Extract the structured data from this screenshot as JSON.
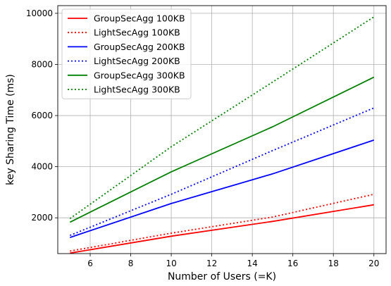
{
  "chart_data": {
    "type": "line",
    "xlabel": "Number of Users (=K)",
    "ylabel": "key Sharing Time (ms)",
    "xlim": [
      4.4,
      20.6
    ],
    "ylim": [
      600,
      10300
    ],
    "x_ticks": [
      6,
      8,
      10,
      12,
      14,
      16,
      18,
      20
    ],
    "y_ticks": [
      2000,
      4000,
      6000,
      8000,
      10000
    ],
    "grid": true,
    "legend_position": "top-left",
    "x": [
      5,
      10,
      15,
      20
    ],
    "series": [
      {
        "name": "GroupSecAgg 100KB",
        "color": "#ff0000",
        "dash": "solid",
        "values": [
          620,
          1280,
          1860,
          2510
        ]
      },
      {
        "name": "LightSecAgg 100KB",
        "color": "#ff0000",
        "dash": "dotted",
        "values": [
          700,
          1400,
          2030,
          2920
        ]
      },
      {
        "name": "GroupSecAgg 200KB",
        "color": "#0000ff",
        "dash": "solid",
        "values": [
          1230,
          2560,
          3720,
          5040
        ]
      },
      {
        "name": "LightSecAgg 200KB",
        "color": "#0000ff",
        "dash": "dotted",
        "values": [
          1310,
          2920,
          4630,
          6300
        ]
      },
      {
        "name": "GroupSecAgg 300KB",
        "color": "#008000",
        "dash": "solid",
        "values": [
          1830,
          3800,
          5560,
          7500
        ]
      },
      {
        "name": "LightSecAgg 300KB",
        "color": "#008000",
        "dash": "dotted",
        "values": [
          1970,
          4780,
          7310,
          9860
        ]
      }
    ]
  }
}
